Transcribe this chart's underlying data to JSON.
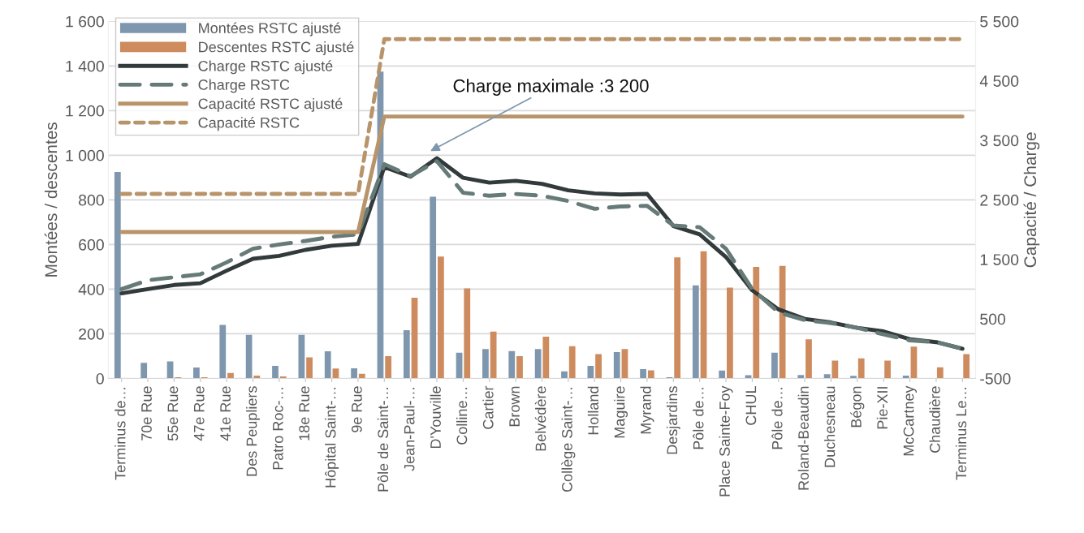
{
  "chart_data": {
    "type": "bar",
    "categories": [
      "Terminus de…",
      "70e Rue",
      "55e Rue",
      "47e Rue",
      "41e Rue",
      "Des Peupliers",
      "Patro Roc-…",
      "18e Rue",
      "Hôpital Saint-…",
      "9e Rue",
      "Pôle de Saint-…",
      "Jean-Paul-…",
      "D'Youville",
      "Colline…",
      "Cartier",
      "Brown",
      "Belvédère",
      "Collège Saint-…",
      "Holland",
      "Maguire",
      "Myrand",
      "Desjardins",
      "Pôle de…",
      "Place Sainte-Foy",
      "CHUL",
      "Pôle de…",
      "Roland-Beaudin",
      "Duchesneau",
      "Bégon",
      "Pie-XII",
      "McCartney",
      "Chaudière",
      "Terminus Le…"
    ],
    "series": [
      {
        "name": "Montées RSTC ajusté",
        "color": "#7f97ae",
        "values": [
          925,
          70,
          76,
          49,
          240,
          195,
          56,
          195,
          122,
          45,
          1375,
          216,
          814,
          115,
          132,
          123,
          132,
          32,
          56,
          118,
          42,
          5,
          417,
          35,
          14,
          115,
          15,
          19,
          12,
          0,
          13,
          0,
          0
        ]
      },
      {
        "name": "Descentes RSTC ajusté",
        "color": "#cd8b5e",
        "values": [
          0,
          0,
          5,
          5,
          24,
          13,
          9,
          94,
          44,
          21,
          100,
          362,
          546,
          403,
          210,
          100,
          187,
          144,
          109,
          132,
          36,
          542,
          570,
          407,
          500,
          504,
          175,
          80,
          90,
          80,
          143,
          50,
          109
        ]
      },
      {
        "name": "Charge RSTC ajusté",
        "type": "line",
        "axis": "y2",
        "color": "#323a3b",
        "line_style": "solid",
        "values": [
          930,
          1000,
          1070,
          1100,
          1310,
          1510,
          1560,
          1660,
          1730,
          1760,
          3050,
          2890,
          3200,
          2870,
          2790,
          2820,
          2770,
          2660,
          2610,
          2590,
          2600,
          2060,
          1920,
          1540,
          980,
          660,
          500,
          440,
          350,
          290,
          160,
          110,
          0
        ]
      },
      {
        "name": "Charge RSTC",
        "type": "line",
        "axis": "y2",
        "color": "#667a78",
        "line_style": "dashed",
        "values": [
          1000,
          1150,
          1200,
          1250,
          1450,
          1680,
          1750,
          1810,
          1880,
          1920,
          3100,
          2900,
          3150,
          2620,
          2570,
          2600,
          2570,
          2480,
          2350,
          2390,
          2400,
          2070,
          2040,
          1680,
          1000,
          610,
          480,
          430,
          350,
          240,
          140,
          110,
          0
        ]
      },
      {
        "name": "Capacité RSTC ajusté",
        "type": "line",
        "axis": "y2",
        "color": "#b8946a",
        "line_style": "solid",
        "values": [
          1960,
          1960,
          1960,
          1960,
          1960,
          1960,
          1960,
          1960,
          1960,
          1960,
          3900,
          3900,
          3900,
          3900,
          3900,
          3900,
          3900,
          3900,
          3900,
          3900,
          3900,
          3900,
          3900,
          3900,
          3900,
          3900,
          3900,
          3900,
          3900,
          3900,
          3900,
          3900,
          3900
        ]
      },
      {
        "name": "Capacité RSTC",
        "type": "line",
        "axis": "y2",
        "color": "#b8946a",
        "line_style": "dotted",
        "values": [
          2600,
          2600,
          2600,
          2600,
          2600,
          2600,
          2600,
          2600,
          2600,
          2600,
          5200,
          5200,
          5200,
          5200,
          5200,
          5200,
          5200,
          5200,
          5200,
          5200,
          5200,
          5200,
          5200,
          5200,
          5200,
          5200,
          5200,
          5200,
          5200,
          5200,
          5200,
          5200,
          5200
        ]
      }
    ],
    "ylabel": "Montées / descentes",
    "y2label": "Capacité / Charge",
    "ylim": [
      0,
      1600
    ],
    "yticks": [
      0,
      200,
      400,
      600,
      800,
      {
        "value": 1000,
        "label": "1 000"
      },
      {
        "value": 1200,
        "label": "1 200"
      },
      {
        "value": 1400,
        "label": "1 400"
      },
      {
        "value": 1600,
        "label": "1 600"
      }
    ],
    "y2lim": [
      -500,
      5500
    ],
    "y2ticks": [
      -500,
      500,
      {
        "value": 1500,
        "label": "1 500"
      },
      {
        "value": 2500,
        "label": "2 500"
      },
      {
        "value": 3500,
        "label": "3 500"
      },
      {
        "value": 4500,
        "label": "4 500"
      },
      {
        "value": 5500,
        "label": "5 500"
      }
    ],
    "annotations": [
      "Charge maximale :3 200"
    ],
    "grid": "y",
    "legend": "top left"
  }
}
